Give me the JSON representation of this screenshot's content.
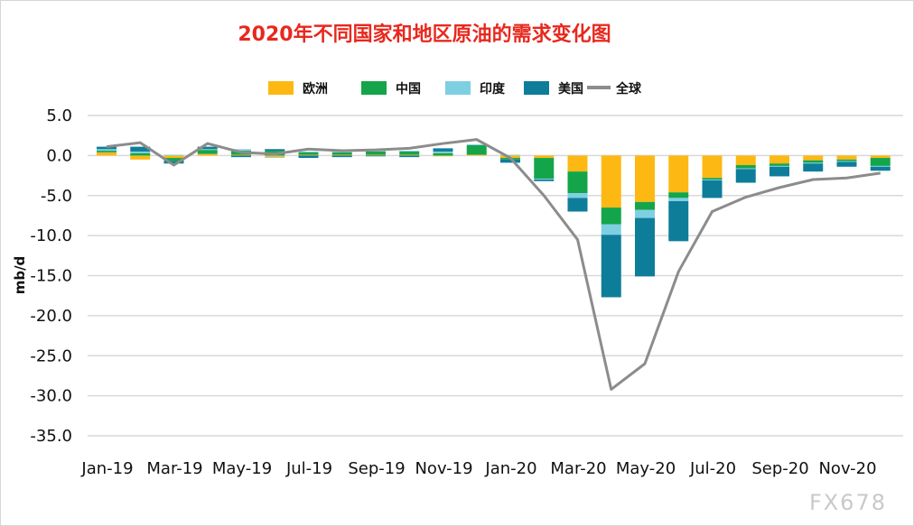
{
  "title": "2020年不同国家和地区原油的需求变化图",
  "watermark": "FX678",
  "chart_data": {
    "type": "bar",
    "stacked": true,
    "title": "2020年不同国家和地区原油的需求变化图",
    "ylabel": "mb/d",
    "xlabel": "",
    "ylim": [
      -35,
      5
    ],
    "yticks": [
      "5.0",
      "0.0",
      "-5.0",
      "-10.0",
      "-15.0",
      "-20.0",
      "-25.0",
      "-30.0",
      "-35.0"
    ],
    "grid": true,
    "legend_position": "top",
    "categories": [
      "Jan-19",
      "Feb-19",
      "Mar-19",
      "Apr-19",
      "May-19",
      "Jun-19",
      "Jul-19",
      "Aug-19",
      "Sep-19",
      "Oct-19",
      "Nov-19",
      "Dec-19",
      "Jan-20",
      "Feb-20",
      "Mar-20",
      "Apr-20",
      "May-20",
      "Jun-20",
      "Jul-20",
      "Aug-20",
      "Sep-20",
      "Oct-20",
      "Nov-20",
      "Dec-20"
    ],
    "xtick_labels": [
      "Jan-19",
      "Mar-19",
      "May-19",
      "Jul-19",
      "Sep-19",
      "Nov-19",
      "Jan-20",
      "Mar-20",
      "May-20",
      "Jul-20",
      "Sep-20",
      "Nov-20"
    ],
    "series": [
      {
        "name": "欧洲",
        "color": "#FDB813",
        "values": [
          0.4,
          -0.5,
          -0.3,
          0.2,
          0.1,
          -0.2,
          0.1,
          0.1,
          0.1,
          0.1,
          -0.1,
          0.1,
          -0.3,
          -0.3,
          -2.0,
          -6.5,
          -5.8,
          -4.6,
          -2.8,
          -1.2,
          -1.0,
          -0.6,
          -0.5,
          -0.3
        ]
      },
      {
        "name": "中国",
        "color": "#14A54B",
        "values": [
          0.2,
          0.3,
          -0.4,
          0.5,
          0.5,
          0.6,
          0.3,
          0.3,
          0.4,
          0.4,
          0.3,
          1.2,
          -0.2,
          -2.6,
          -2.7,
          -2.1,
          -1.0,
          -0.7,
          -0.2,
          -0.4,
          -0.3,
          -0.3,
          -0.2,
          -1.0
        ]
      },
      {
        "name": "印度",
        "color": "#7FCFE3",
        "values": [
          0.2,
          0.2,
          0.1,
          0.1,
          0.2,
          -0.1,
          0.1,
          0.1,
          0.1,
          0.1,
          0.2,
          0.1,
          0.1,
          -0.1,
          -0.6,
          -1.3,
          -1.0,
          -0.4,
          -0.1,
          -0.1,
          -0.1,
          -0.1,
          -0.1,
          -0.1
        ]
      },
      {
        "name": "美国",
        "color": "#0E7D9A",
        "values": [
          0.3,
          0.6,
          -0.3,
          0.3,
          -0.2,
          0.2,
          -0.3,
          -0.2,
          -0.1,
          -0.2,
          0.4,
          0.0,
          -0.4,
          -0.2,
          -1.7,
          -7.8,
          -7.3,
          -5.0,
          -2.2,
          -1.7,
          -1.2,
          -1.0,
          -0.6,
          -0.5
        ]
      },
      {
        "name": "全球",
        "type": "line",
        "color": "#8C8C8C",
        "values": [
          1.1,
          1.6,
          -1.2,
          1.5,
          0.4,
          0.2,
          0.8,
          0.6,
          0.7,
          0.9,
          1.5,
          2.0,
          -0.3,
          -5.0,
          -10.5,
          -29.2,
          -26.0,
          -14.5,
          -7.0,
          -5.2,
          -4.0,
          -3.0,
          -2.8,
          -2.2
        ]
      }
    ]
  }
}
